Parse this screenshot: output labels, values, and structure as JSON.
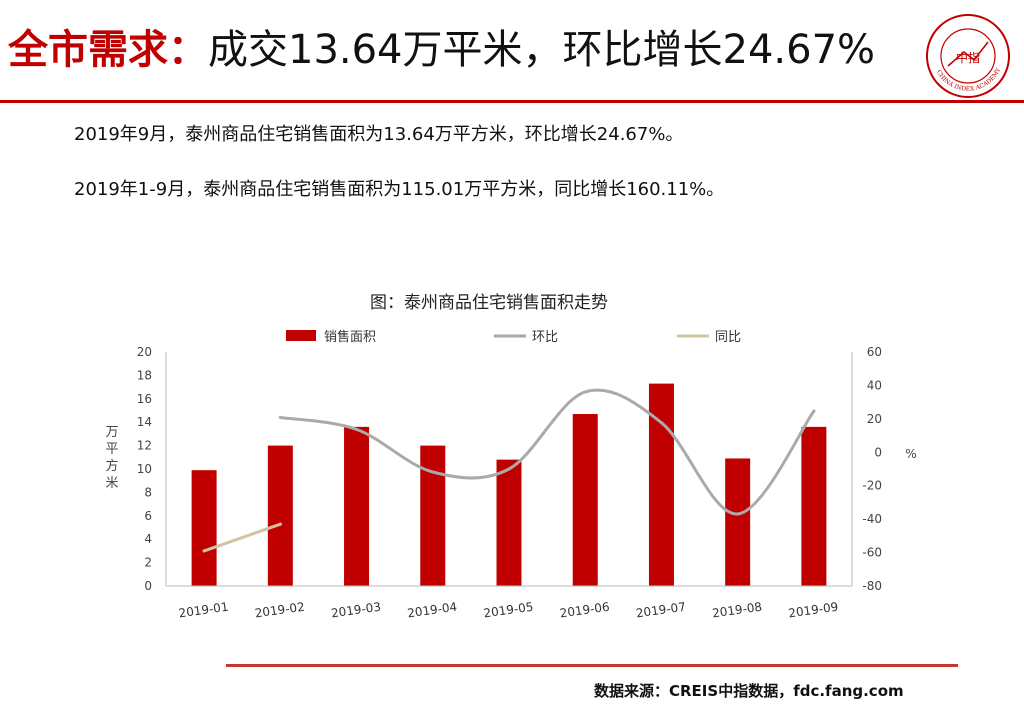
{
  "header": {
    "title_highlight": "全市需求：",
    "title_rest": "成交13.64万平米，环比增长24.67%",
    "logo_text": "中指",
    "logo_ring_text": "CHINA INDEX ACADEMY"
  },
  "body": {
    "line1": "2019年9月，泰州商品住宅销售面积为13.64万平方米，环比增长24.67%。",
    "line2": "2019年1-9月，泰州商品住宅销售面积为115.01万平方米，同比增长160.11%。"
  },
  "footer": {
    "source": "数据来源：CREIS中指数据，fdc.fang.com"
  },
  "colors": {
    "accent": "#c00000",
    "bar": "#c00000",
    "line_hb": "#aaaaaa",
    "line_tb": "#cfc5a0"
  },
  "chart_data": {
    "type": "bar",
    "title": "图：泰州商品住宅销售面积走势",
    "categories": [
      "2019-01",
      "2019-02",
      "2019-03",
      "2019-04",
      "2019-05",
      "2019-06",
      "2019-07",
      "2019-08",
      "2019-09"
    ],
    "ylabel": "万平方米",
    "ylim": [
      0,
      20
    ],
    "yticks": [
      0,
      2,
      4,
      6,
      8,
      10,
      12,
      14,
      16,
      18,
      20
    ],
    "y2label": "%",
    "y2lim": [
      -80,
      60
    ],
    "y2ticks": [
      -80,
      -60,
      -40,
      -20,
      0,
      20,
      40,
      60
    ],
    "legend_position": "top",
    "series": [
      {
        "name": "销售面积",
        "kind": "bar",
        "axis": "left",
        "values": [
          9.9,
          12.0,
          13.6,
          12.0,
          10.8,
          14.7,
          17.3,
          10.9,
          13.6
        ]
      },
      {
        "name": "环比",
        "kind": "line",
        "axis": "right",
        "values": [
          null,
          20.8,
          13.7,
          -11.8,
          -10.0,
          36.1,
          17.7,
          -36.9,
          24.67
        ]
      },
      {
        "name": "同比",
        "kind": "line",
        "axis": "right",
        "values": [
          -59.0,
          -43.0,
          null,
          null,
          null,
          null,
          null,
          null,
          null
        ]
      }
    ]
  }
}
